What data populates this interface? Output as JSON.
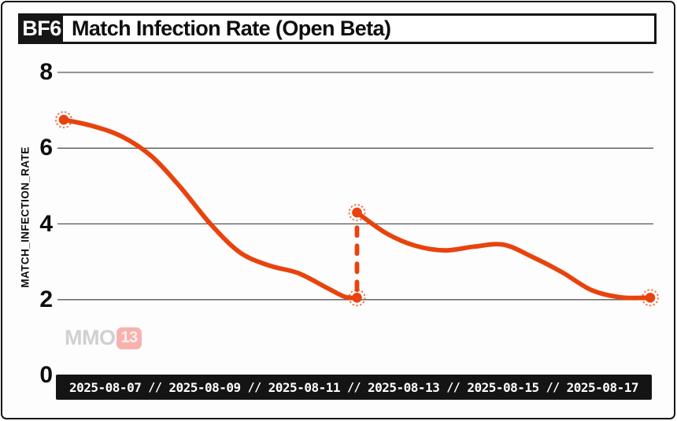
{
  "window": {
    "badge": "BF6",
    "title": "Match Infection Rate (Open Beta)"
  },
  "watermark": {
    "text": "MMO",
    "badge": "13"
  },
  "chart_data": {
    "type": "line",
    "title": "Match Infection Rate (Open Beta)",
    "badge": "BF6",
    "xlabel": "",
    "ylabel": "MATCH_INFECTION_RATE",
    "ylim": [
      0,
      8
    ],
    "yticks": [
      0,
      2,
      4,
      6,
      8
    ],
    "xtick_labels": [
      "2025-08-07",
      "2025-08-09",
      "2025-08-11",
      "2025-08-13",
      "2025-08-15",
      "2025-08-17"
    ],
    "xtick_separator": "//",
    "x_unit": "day_of_august_2025",
    "x_range_days": [
      7,
      17
    ],
    "grid": "horizontal-only",
    "legend": "none",
    "line_color": "#e8430e",
    "segments": [
      {
        "name": "segment_1",
        "points": [
          [
            7.0,
            6.75
          ],
          [
            7.5,
            6.58
          ],
          [
            8.0,
            6.3
          ],
          [
            8.5,
            5.78
          ],
          [
            9.0,
            4.95
          ],
          [
            9.5,
            4.0
          ],
          [
            10.0,
            3.25
          ],
          [
            10.5,
            2.9
          ],
          [
            11.0,
            2.7
          ],
          [
            11.5,
            2.3
          ],
          [
            11.8,
            2.07
          ],
          [
            12.0,
            2.05
          ]
        ]
      },
      {
        "name": "segment_2",
        "points": [
          [
            12.0,
            4.3
          ],
          [
            12.5,
            3.75
          ],
          [
            13.0,
            3.42
          ],
          [
            13.5,
            3.3
          ],
          [
            14.0,
            3.4
          ],
          [
            14.5,
            3.45
          ],
          [
            15.0,
            3.12
          ],
          [
            15.5,
            2.72
          ],
          [
            16.0,
            2.25
          ],
          [
            16.5,
            2.06
          ],
          [
            17.0,
            2.05
          ]
        ]
      }
    ],
    "markers": [
      [
        7.0,
        6.75
      ],
      [
        12.0,
        2.05
      ],
      [
        12.0,
        4.3
      ],
      [
        17.0,
        2.05
      ]
    ],
    "discontinuity": {
      "x_day": 12,
      "from": 2.05,
      "to": 4.3,
      "style": "dashed-vertical"
    }
  }
}
